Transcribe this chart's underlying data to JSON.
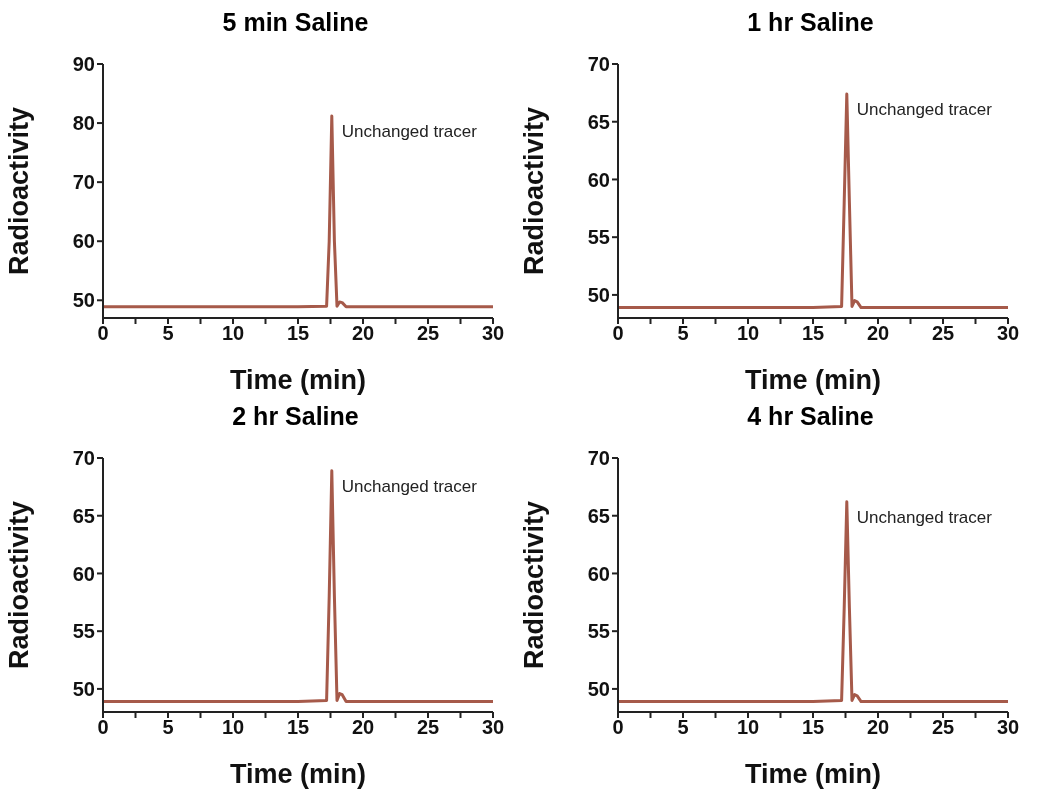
{
  "chart_data": [
    {
      "type": "line",
      "title": "5 min Saline",
      "xlabel": "Time (min)",
      "ylabel": "Radioactivity",
      "annotations": [
        "Unchanged tracer"
      ],
      "xlim": [
        0,
        30
      ],
      "xticks": [
        0,
        {
          "value": 2.5,
          "label": null
        },
        5,
        {
          "value": 7.5,
          "label": null
        },
        10,
        {
          "value": 12.5,
          "label": null
        },
        15,
        {
          "value": 17.5,
          "label": null
        },
        20,
        {
          "value": 22.5,
          "label": null
        },
        25,
        {
          "value": 27.5,
          "label": null
        },
        30
      ],
      "ylim": [
        47,
        90
      ],
      "yticks": [
        50,
        60,
        70,
        80,
        90
      ],
      "grid": false,
      "marker": "none",
      "line_style": "solid",
      "series": [
        {
          "color": "#a65a4a",
          "x": [
            0,
            5,
            10,
            15,
            17.2,
            17.4,
            17.6,
            17.8,
            18.0,
            18.2,
            18.4,
            18.7,
            20,
            25,
            30
          ],
          "values": [
            48.9,
            48.9,
            48.9,
            48.9,
            49.0,
            60,
            81.2,
            60,
            49.0,
            49.7,
            49.6,
            48.9,
            48.9,
            48.9,
            48.9
          ]
        }
      ]
    },
    {
      "type": "line",
      "title": "1 hr Saline",
      "xlabel": "Time (min)",
      "ylabel": "Radioactivity",
      "annotations": [
        "Unchanged tracer"
      ],
      "xlim": [
        0,
        30
      ],
      "xticks": [
        0,
        {
          "value": 2.5,
          "label": null
        },
        5,
        {
          "value": 7.5,
          "label": null
        },
        10,
        {
          "value": 12.5,
          "label": null
        },
        15,
        {
          "value": 17.5,
          "label": null
        },
        20,
        {
          "value": 22.5,
          "label": null
        },
        25,
        {
          "value": 27.5,
          "label": null
        },
        30
      ],
      "ylim": [
        48,
        70
      ],
      "yticks": [
        50,
        55,
        60,
        65,
        70
      ],
      "grid": false,
      "marker": "none",
      "line_style": "solid",
      "series": [
        {
          "color": "#a65a4a",
          "x": [
            0,
            5,
            10,
            15,
            17.2,
            17.4,
            17.6,
            17.8,
            18.0,
            18.2,
            18.4,
            18.7,
            20,
            25,
            30
          ],
          "values": [
            48.9,
            48.9,
            48.9,
            48.9,
            49.0,
            58,
            67.4,
            58,
            49.0,
            49.5,
            49.4,
            48.9,
            48.9,
            48.9,
            48.9
          ]
        }
      ]
    },
    {
      "type": "line",
      "title": "2 hr Saline",
      "xlabel": "Time (min)",
      "ylabel": "Radioactivity",
      "annotations": [
        "Unchanged tracer"
      ],
      "xlim": [
        0,
        30
      ],
      "xticks": [
        0,
        {
          "value": 2.5,
          "label": null
        },
        5,
        {
          "value": 7.5,
          "label": null
        },
        10,
        {
          "value": 12.5,
          "label": null
        },
        15,
        {
          "value": 17.5,
          "label": null
        },
        20,
        {
          "value": 22.5,
          "label": null
        },
        25,
        {
          "value": 27.5,
          "label": null
        },
        30
      ],
      "ylim": [
        48,
        70
      ],
      "yticks": [
        50,
        55,
        60,
        65,
        70
      ],
      "grid": false,
      "marker": "none",
      "line_style": "solid",
      "series": [
        {
          "color": "#a65a4a",
          "x": [
            0,
            5,
            10,
            15,
            17.2,
            17.4,
            17.6,
            17.8,
            18.0,
            18.2,
            18.4,
            18.7,
            20,
            25,
            30
          ],
          "values": [
            48.9,
            48.9,
            48.9,
            48.9,
            49.0,
            58,
            68.9,
            58,
            49.0,
            49.6,
            49.5,
            48.9,
            48.9,
            48.9,
            48.9
          ]
        }
      ]
    },
    {
      "type": "line",
      "title": "4 hr Saline",
      "xlabel": "Time (min)",
      "ylabel": "Radioactivity",
      "annotations": [
        "Unchanged tracer"
      ],
      "xlim": [
        0,
        30
      ],
      "xticks": [
        0,
        {
          "value": 2.5,
          "label": null
        },
        5,
        {
          "value": 7.5,
          "label": null
        },
        10,
        {
          "value": 12.5,
          "label": null
        },
        15,
        {
          "value": 17.5,
          "label": null
        },
        20,
        {
          "value": 22.5,
          "label": null
        },
        25,
        {
          "value": 27.5,
          "label": null
        },
        30
      ],
      "ylim": [
        48,
        70
      ],
      "yticks": [
        50,
        55,
        60,
        65,
        70
      ],
      "grid": false,
      "marker": "none",
      "line_style": "solid",
      "series": [
        {
          "color": "#a65a4a",
          "x": [
            0,
            5,
            10,
            15,
            17.2,
            17.4,
            17.6,
            17.8,
            18.0,
            18.2,
            18.4,
            18.7,
            20,
            25,
            30
          ],
          "values": [
            48.9,
            48.9,
            48.9,
            48.9,
            49.0,
            57,
            66.2,
            57,
            49.0,
            49.5,
            49.4,
            48.9,
            48.9,
            48.9,
            48.9
          ]
        }
      ]
    }
  ]
}
